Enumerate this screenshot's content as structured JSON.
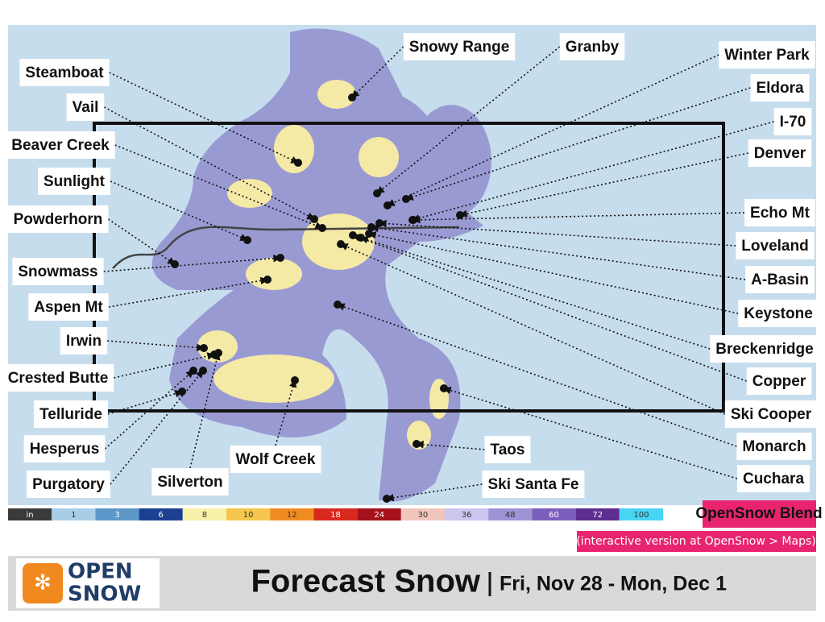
{
  "map": {
    "labels": [
      "Steamboat",
      "Vail",
      "Beaver Creek",
      "Sunlight",
      "Powderhorn",
      "Snowmass",
      "Aspen Mt",
      "Irwin",
      "Crested Butte",
      "Telluride",
      "Hesperus",
      "Purgatory",
      "Snowy Range",
      "Granby",
      "Winter Park",
      "Eldora",
      "I-70",
      "Denver",
      "Echo Mt",
      "Loveland",
      "A-Basin",
      "Keystone",
      "Breckenridge",
      "Copper",
      "Ski Cooper",
      "Monarch",
      "Cuchara",
      "Taos",
      "Ski Santa Fe",
      "Wolf Creek",
      "Silverton"
    ],
    "legend": {
      "unit": "in",
      "unit_color": "#3a3a3a",
      "values": [
        1,
        3,
        6,
        8,
        10,
        12,
        18,
        24,
        30,
        36,
        48,
        60,
        72,
        100
      ],
      "colors": [
        "#a9cde6",
        "#5e97c9",
        "#1c3f91",
        "#f7f1aa",
        "#f6c74c",
        "#f08b22",
        "#d9281d",
        "#a5121b",
        "#f1c6bd",
        "#cbc7ee",
        "#a092d7",
        "#7b5ebb",
        "#5b2e8f",
        "#48d4f3"
      ]
    },
    "model": "OpenSnow Blend",
    "note": "(interactive version at OpenSnow > Maps)"
  },
  "footer": {
    "logo_top": "OPEN",
    "logo_bottom": "SNOW",
    "title": "Forecast Snow",
    "dates": "Fri, Nov 28 - Mon, Dec 1"
  }
}
